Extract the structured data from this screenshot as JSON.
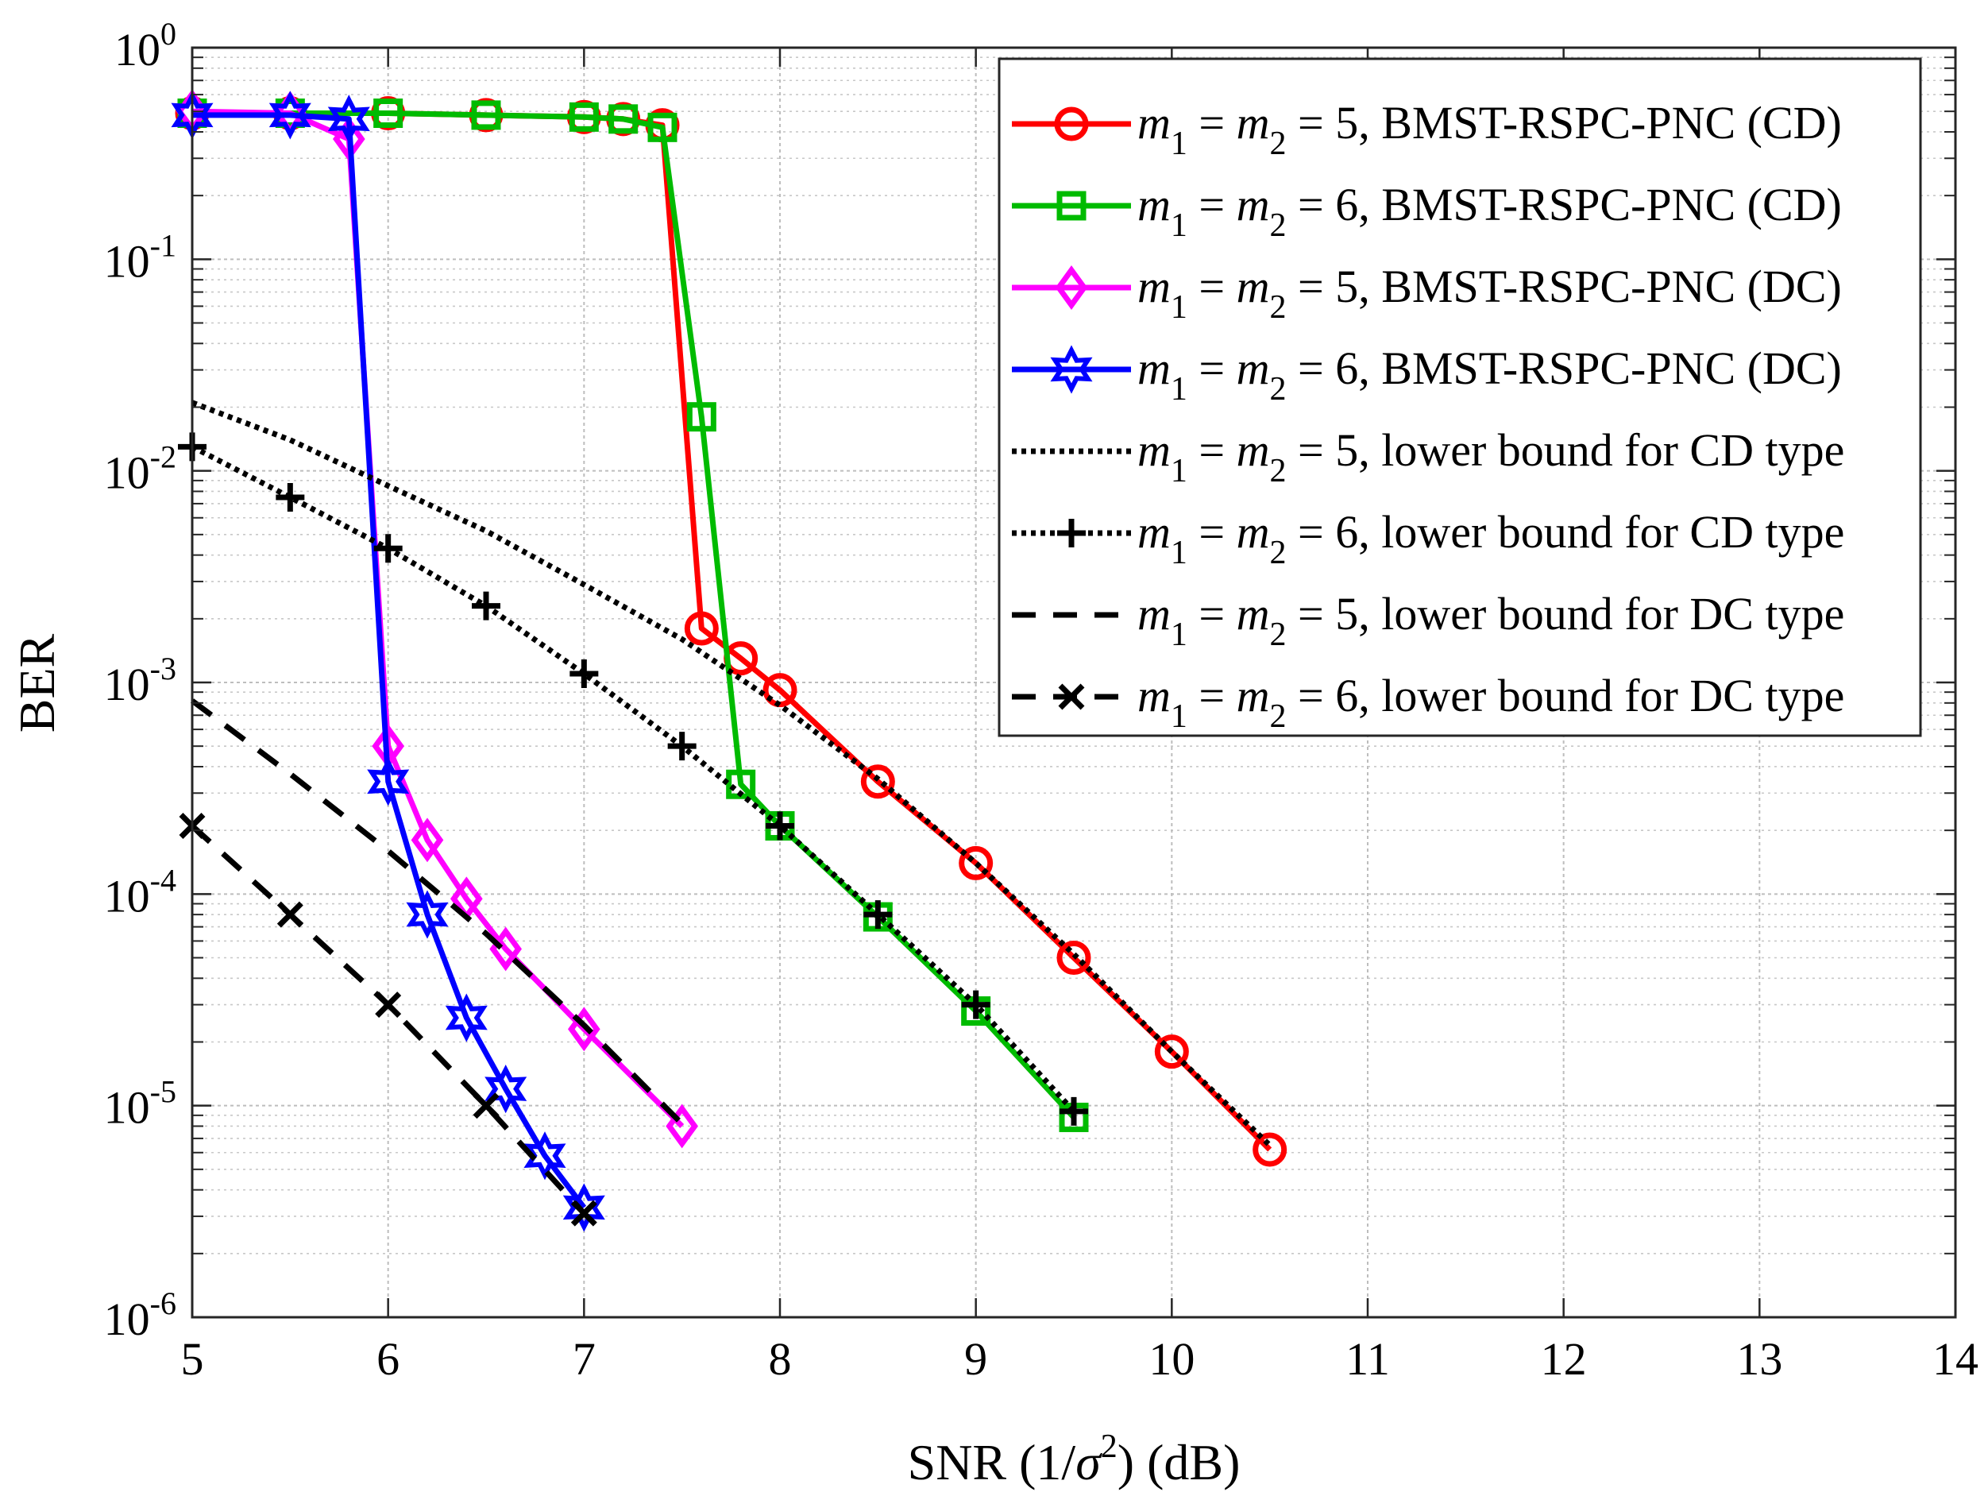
{
  "chart_data": {
    "type": "line",
    "xscale": "linear",
    "yscale": "log",
    "xlabel_parts": [
      "SNR (1/",
      "σ",
      "2",
      ") (dB)"
    ],
    "ylabel": "BER",
    "xlim": [
      5,
      14
    ],
    "ylim": [
      1e-06,
      1
    ],
    "xticks": [
      5,
      6,
      7,
      8,
      9,
      10,
      11,
      12,
      13,
      14
    ],
    "xtick_labels": [
      "5",
      "6",
      "7",
      "8",
      "9",
      "10",
      "11",
      "12",
      "13",
      "14"
    ],
    "yticks": [
      {
        "value": 1,
        "base": "10",
        "exp": "0"
      },
      {
        "value": 0.1,
        "base": "10",
        "exp": "-1"
      },
      {
        "value": 0.01,
        "base": "10",
        "exp": "-2"
      },
      {
        "value": 0.001,
        "base": "10",
        "exp": "-3"
      },
      {
        "value": 0.0001,
        "base": "10",
        "exp": "-4"
      },
      {
        "value": 1e-05,
        "base": "10",
        "exp": "-5"
      },
      {
        "value": 1e-06,
        "base": "10",
        "exp": "-6"
      }
    ],
    "grid": true,
    "minor_grid": true,
    "legend_position": "top-right",
    "series": [
      {
        "legend": {
          "m": "m",
          "s1": "1",
          "eq1": " = ",
          "s2": "2",
          "rest": " = 5, BMST-RSPC-PNC (CD)"
        },
        "color": "#ff0000",
        "dash": "solid",
        "marker": "circle",
        "x": [
          5,
          5.5,
          6,
          6.5,
          7,
          7.2,
          7.4,
          7.6,
          7.8,
          8,
          8.5,
          9,
          9.5,
          10,
          10.5
        ],
        "y": [
          0.49,
          0.49,
          0.49,
          0.48,
          0.47,
          0.46,
          0.43,
          0.0018,
          0.0013,
          0.00092,
          0.00034,
          0.00014,
          5e-05,
          1.8e-05,
          6.2e-06
        ]
      },
      {
        "legend": {
          "m": "m",
          "s1": "1",
          "eq1": " = ",
          "s2": "2",
          "rest": " = 6, BMST-RSPC-PNC (CD)"
        },
        "color": "#00bb00",
        "dash": "solid",
        "marker": "square",
        "x": [
          5,
          5.5,
          6,
          6.5,
          7,
          7.2,
          7.4,
          7.6,
          7.8,
          8,
          8.5,
          9,
          9.5
        ],
        "y": [
          0.49,
          0.49,
          0.49,
          0.48,
          0.47,
          0.46,
          0.42,
          0.018,
          0.00033,
          0.00021,
          7.8e-05,
          2.8e-05,
          8.8e-06
        ]
      },
      {
        "legend": {
          "m": "m",
          "s1": "1",
          "eq1": " = ",
          "s2": "2",
          "rest": " = 5, BMST-RSPC-PNC (DC)"
        },
        "color": "#ff00ff",
        "dash": "solid",
        "marker": "diamond",
        "x": [
          5,
          5.5,
          5.8,
          6,
          6.2,
          6.4,
          6.6,
          7,
          7.5
        ],
        "y": [
          0.5,
          0.49,
          0.37,
          0.0005,
          0.00018,
          9.5e-05,
          5.5e-05,
          2.3e-05,
          8e-06
        ]
      },
      {
        "legend": {
          "m": "m",
          "s1": "1",
          "eq1": " = ",
          "s2": "2",
          "rest": " = 6, BMST-RSPC-PNC (DC)"
        },
        "color": "#0000ff",
        "dash": "solid",
        "marker": "hexagram",
        "x": [
          5,
          5.5,
          5.8,
          6,
          6.2,
          6.4,
          6.6,
          6.8,
          7
        ],
        "y": [
          0.48,
          0.48,
          0.46,
          0.00034,
          8e-05,
          2.6e-05,
          1.2e-05,
          5.8e-06,
          3.3e-06
        ]
      },
      {
        "legend": {
          "m": "m",
          "s1": "1",
          "eq1": " = ",
          "s2": "2",
          "rest": " = 5, lower bound for CD type"
        },
        "color": "#000000",
        "dash": "dotted",
        "marker": "none",
        "x": [
          5,
          5.5,
          6,
          6.5,
          7,
          7.5,
          8,
          8.5,
          9,
          9.5,
          10,
          10.5
        ],
        "y": [
          0.021,
          0.014,
          0.0085,
          0.0052,
          0.0029,
          0.0016,
          0.00078,
          0.00035,
          0.00014,
          5.2e-05,
          1.8e-05,
          6.5e-06
        ]
      },
      {
        "legend": {
          "m": "m",
          "s1": "1",
          "eq1": " = ",
          "s2": "2",
          "rest": " = 6, lower bound for CD type"
        },
        "color": "#000000",
        "dash": "dotted",
        "marker": "plus",
        "x": [
          5,
          5.5,
          6,
          6.5,
          7,
          7.5,
          8,
          8.5,
          9,
          9.5
        ],
        "y": [
          0.013,
          0.0075,
          0.0043,
          0.0023,
          0.0011,
          0.0005,
          0.00021,
          8e-05,
          3e-05,
          9.4e-06
        ]
      },
      {
        "legend": {
          "m": "m",
          "s1": "1",
          "eq1": " = ",
          "s2": "2",
          "rest": " = 5, lower bound for DC type"
        },
        "color": "#000000",
        "dash": "dashed",
        "marker": "none",
        "x": [
          5,
          5.5,
          6,
          6.5,
          7,
          7.5
        ],
        "y": [
          0.00082,
          0.00037,
          0.00016,
          6.5e-05,
          2.4e-05,
          8.2e-06
        ]
      },
      {
        "legend": {
          "m": "m",
          "s1": "1",
          "eq1": " = ",
          "s2": "2",
          "rest": " = 6, lower bound for DC type"
        },
        "color": "#000000",
        "dash": "dashed",
        "marker": "x",
        "x": [
          5,
          5.5,
          6,
          6.5,
          7
        ],
        "y": [
          0.00021,
          8e-05,
          3e-05,
          1e-05,
          3.1e-06
        ]
      }
    ]
  }
}
